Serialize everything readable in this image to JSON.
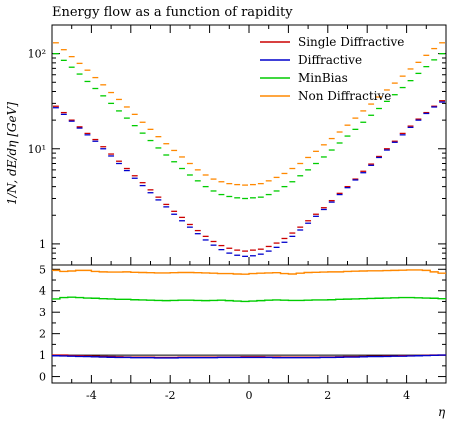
{
  "chart_data": {
    "type": "line",
    "title": "Energy flow as a function of rapidity",
    "xlabel": "η",
    "ylabel": "1/N, dE/dη [GeV]",
    "xlim": [
      -5,
      5
    ],
    "ylim": [
      0.6,
      200
    ],
    "yscale": "log",
    "x_ticks": [
      "-4",
      "-2",
      "0",
      "2",
      "4"
    ],
    "y_ticks": [
      "10²",
      "10¹",
      "1"
    ],
    "legend_position": "top-right",
    "series": [
      {
        "name": "Single Diffractive",
        "color": "#cc0000",
        "x": [
          -5.0,
          -4.8,
          -4.6,
          -4.4,
          -4.2,
          -4.0,
          -3.8,
          -3.6,
          -3.4,
          -3.2,
          -3.0,
          -2.8,
          -2.6,
          -2.4,
          -2.2,
          -2.0,
          -1.8,
          -1.6,
          -1.4,
          -1.2,
          -1.0,
          -0.8,
          -0.6,
          -0.4,
          -0.2,
          0.0,
          0.2,
          0.4,
          0.6,
          0.8,
          1.0,
          1.2,
          1.4,
          1.6,
          1.8,
          2.0,
          2.2,
          2.4,
          2.6,
          2.8,
          3.0,
          3.2,
          3.4,
          3.6,
          3.8,
          4.0,
          4.2,
          4.4,
          4.6,
          4.8
        ],
        "y": [
          28.0,
          24.0,
          20.0,
          17.0,
          14.5,
          12.5,
          10.5,
          8.8,
          7.4,
          6.2,
          5.2,
          4.4,
          3.7,
          3.1,
          2.6,
          2.2,
          1.9,
          1.6,
          1.38,
          1.2,
          1.06,
          0.96,
          0.9,
          0.86,
          0.84,
          0.86,
          0.88,
          0.94,
          1.02,
          1.14,
          1.3,
          1.5,
          1.75,
          2.05,
          2.4,
          2.85,
          3.4,
          4.0,
          4.8,
          5.8,
          6.9,
          8.3,
          10.0,
          12.0,
          14.5,
          17.3,
          20.5,
          24.0,
          28.0,
          32.0
        ]
      },
      {
        "name": "Diffractive",
        "color": "#0000cc",
        "x": [
          -5.0,
          -4.8,
          -4.6,
          -4.4,
          -4.2,
          -4.0,
          -3.8,
          -3.6,
          -3.4,
          -3.2,
          -3.0,
          -2.8,
          -2.6,
          -2.4,
          -2.2,
          -2.0,
          -1.8,
          -1.6,
          -1.4,
          -1.2,
          -1.0,
          -0.8,
          -0.6,
          -0.4,
          -0.2,
          0.0,
          0.2,
          0.4,
          0.6,
          0.8,
          1.0,
          1.2,
          1.4,
          1.6,
          1.8,
          2.0,
          2.2,
          2.4,
          2.6,
          2.8,
          3.0,
          3.2,
          3.4,
          3.6,
          3.8,
          4.0,
          4.2,
          4.4,
          4.6,
          4.8
        ],
        "y": [
          27.0,
          23.0,
          19.5,
          16.5,
          14.0,
          12.0,
          10.0,
          8.4,
          7.0,
          5.9,
          4.9,
          4.1,
          3.45,
          2.9,
          2.45,
          2.05,
          1.75,
          1.5,
          1.28,
          1.1,
          0.97,
          0.87,
          0.8,
          0.76,
          0.74,
          0.75,
          0.78,
          0.84,
          0.92,
          1.04,
          1.2,
          1.4,
          1.65,
          1.95,
          2.3,
          2.75,
          3.3,
          3.9,
          4.7,
          5.6,
          6.7,
          8.1,
          9.7,
          11.7,
          14.0,
          16.8,
          20.0,
          23.5,
          27.5,
          31.0
        ]
      },
      {
        "name": "MinBias",
        "color": "#00cc00",
        "x": [
          -5.0,
          -4.8,
          -4.6,
          -4.4,
          -4.2,
          -4.0,
          -3.8,
          -3.6,
          -3.4,
          -3.2,
          -3.0,
          -2.8,
          -2.6,
          -2.4,
          -2.2,
          -2.0,
          -1.8,
          -1.6,
          -1.4,
          -1.2,
          -1.0,
          -0.8,
          -0.6,
          -0.4,
          -0.2,
          0.0,
          0.2,
          0.4,
          0.6,
          0.8,
          1.0,
          1.2,
          1.4,
          1.6,
          1.8,
          2.0,
          2.2,
          2.4,
          2.6,
          2.8,
          3.0,
          3.2,
          3.4,
          3.6,
          3.8,
          4.0,
          4.2,
          4.4,
          4.6,
          4.8
        ],
        "y": [
          100,
          85,
          72,
          61,
          51,
          43,
          36,
          30,
          25,
          21,
          17.5,
          14.6,
          12.2,
          10.2,
          8.6,
          7.3,
          6.2,
          5.3,
          4.6,
          4.0,
          3.6,
          3.3,
          3.15,
          3.05,
          3.0,
          3.05,
          3.1,
          3.3,
          3.6,
          4.0,
          4.5,
          5.2,
          6.0,
          7.0,
          8.2,
          9.7,
          11.5,
          13.6,
          16.0,
          19.0,
          22.5,
          26.5,
          31.5,
          37.0,
          44.0,
          52.0,
          62.0,
          73.0,
          86.0,
          100.0
        ]
      },
      {
        "name": "Non Diffractive",
        "color": "#ff8800",
        "x": [
          -5.0,
          -4.8,
          -4.6,
          -4.4,
          -4.2,
          -4.0,
          -3.8,
          -3.6,
          -3.4,
          -3.2,
          -3.0,
          -2.8,
          -2.6,
          -2.4,
          -2.2,
          -2.0,
          -1.8,
          -1.6,
          -1.4,
          -1.2,
          -1.0,
          -0.8,
          -0.6,
          -0.4,
          -0.2,
          0.0,
          0.2,
          0.4,
          0.6,
          0.8,
          1.0,
          1.2,
          1.4,
          1.6,
          1.8,
          2.0,
          2.2,
          2.4,
          2.6,
          2.8,
          3.0,
          3.2,
          3.4,
          3.6,
          3.8,
          4.0,
          4.2,
          4.4,
          4.6,
          4.8
        ],
        "y": [
          130,
          110,
          93,
          79,
          67,
          56,
          47,
          39,
          33,
          27.5,
          23,
          19,
          16,
          13.4,
          11.3,
          9.6,
          8.2,
          7.0,
          6.0,
          5.3,
          4.8,
          4.5,
          4.3,
          4.2,
          4.15,
          4.2,
          4.3,
          4.6,
          5.0,
          5.5,
          6.2,
          7.0,
          8.1,
          9.4,
          11.0,
          12.8,
          15.0,
          17.7,
          21.0,
          25.0,
          29.5,
          35.0,
          41.5,
          49.0,
          58.0,
          69.0,
          81.0,
          96.0,
          113.0,
          130.0
        ]
      }
    ],
    "ratio_panel": {
      "ylim": [
        -0.3,
        5.2
      ],
      "y_ticks": [
        "0",
        "1",
        "2",
        "3",
        "4",
        "5"
      ],
      "reference_line": 1,
      "series": [
        {
          "name": "Single Diffractive",
          "color": "#cc0000",
          "y": [
            1.0,
            1.0,
            0.98,
            0.97,
            0.96,
            0.95,
            0.94,
            0.93,
            0.92,
            0.91,
            0.9,
            0.9,
            0.9,
            0.89,
            0.89,
            0.89,
            0.9,
            0.9,
            0.9,
            0.9,
            0.9,
            0.91,
            0.91,
            0.91,
            0.92,
            0.92,
            0.92,
            0.91,
            0.91,
            0.9,
            0.9,
            0.9,
            0.9,
            0.9,
            0.91,
            0.91,
            0.92,
            0.93,
            0.93,
            0.94,
            0.95,
            0.95,
            0.96,
            0.96,
            0.97,
            0.97,
            0.98,
            0.99,
            1.0,
            1.0
          ]
        },
        {
          "name": "Diffractive",
          "color": "#0000cc",
          "y": [
            0.97,
            0.96,
            0.95,
            0.94,
            0.93,
            0.92,
            0.91,
            0.9,
            0.89,
            0.89,
            0.88,
            0.88,
            0.88,
            0.87,
            0.87,
            0.87,
            0.88,
            0.88,
            0.88,
            0.88,
            0.88,
            0.89,
            0.89,
            0.89,
            0.89,
            0.89,
            0.89,
            0.89,
            0.88,
            0.88,
            0.88,
            0.88,
            0.88,
            0.88,
            0.89,
            0.89,
            0.9,
            0.91,
            0.91,
            0.92,
            0.93,
            0.93,
            0.94,
            0.95,
            0.95,
            0.96,
            0.97,
            0.98,
            0.99,
            1.0
          ]
        },
        {
          "name": "MinBias",
          "color": "#00cc00",
          "y": [
            3.62,
            3.68,
            3.7,
            3.68,
            3.66,
            3.65,
            3.63,
            3.62,
            3.6,
            3.6,
            3.58,
            3.57,
            3.56,
            3.55,
            3.54,
            3.55,
            3.56,
            3.56,
            3.55,
            3.54,
            3.55,
            3.56,
            3.54,
            3.52,
            3.5,
            3.52,
            3.54,
            3.56,
            3.57,
            3.56,
            3.55,
            3.55,
            3.56,
            3.57,
            3.57,
            3.58,
            3.6,
            3.61,
            3.62,
            3.63,
            3.64,
            3.65,
            3.66,
            3.67,
            3.68,
            3.68,
            3.67,
            3.66,
            3.65,
            3.63
          ]
        },
        {
          "name": "Non Diffractive",
          "color": "#ff8800",
          "y": [
            4.95,
            4.9,
            4.92,
            4.95,
            4.95,
            4.9,
            4.88,
            4.87,
            4.87,
            4.88,
            4.86,
            4.85,
            4.84,
            4.83,
            4.83,
            4.84,
            4.85,
            4.85,
            4.84,
            4.83,
            4.82,
            4.8,
            4.8,
            4.78,
            4.77,
            4.8,
            4.82,
            4.83,
            4.84,
            4.8,
            4.78,
            4.82,
            4.85,
            4.86,
            4.87,
            4.88,
            4.88,
            4.9,
            4.91,
            4.92,
            4.93,
            4.93,
            4.94,
            4.95,
            4.96,
            4.97,
            4.97,
            4.95,
            4.88,
            4.82
          ]
        }
      ]
    }
  }
}
